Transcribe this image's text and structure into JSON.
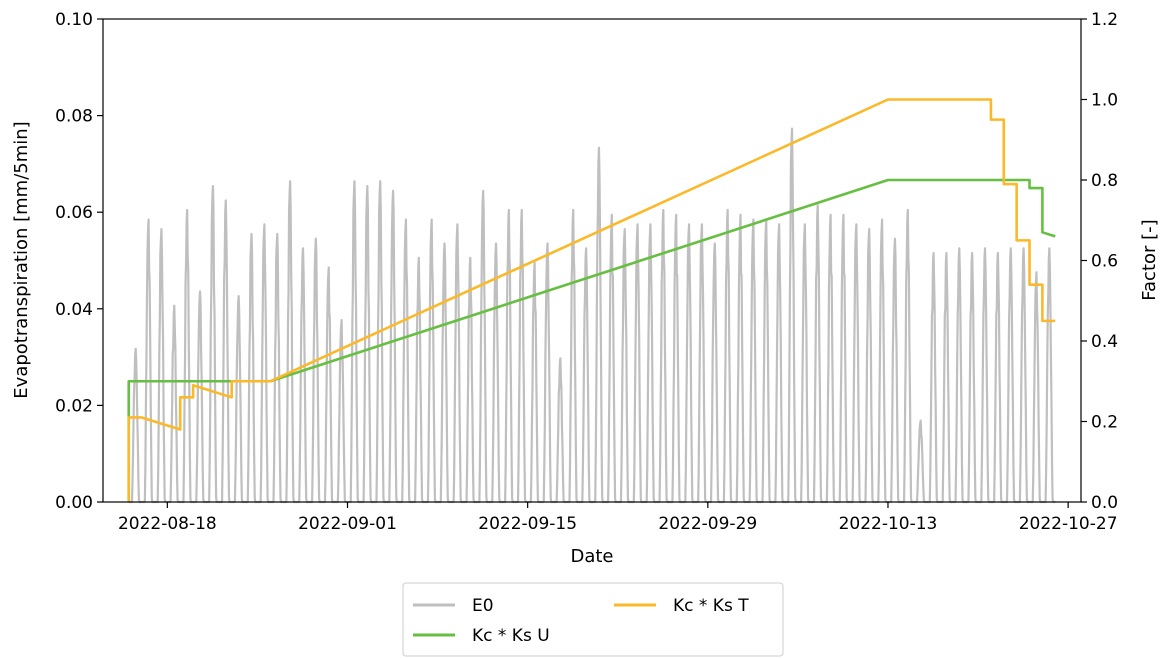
{
  "chart_data": {
    "type": "line",
    "title": "",
    "xlabel": "Date",
    "ylabel": "Evapotranspiration [mm/5min]",
    "y2label": "Factor [-]",
    "x_tick_labels": [
      "2022-08-18",
      "2022-09-01",
      "2022-09-15",
      "2022-09-29",
      "2022-10-13",
      "2022-10-27"
    ],
    "ylim": [
      0,
      0.1
    ],
    "y_tick_labels": [
      "0.00",
      "0.02",
      "0.04",
      "0.06",
      "0.08",
      "0.10"
    ],
    "y2lim": [
      0,
      1.2
    ],
    "y2_tick_labels": [
      "0.0",
      "0.2",
      "0.4",
      "0.6",
      "0.8",
      "1.0",
      "1.2"
    ],
    "xlim": [
      "2022-08-13",
      "2022-10-28"
    ],
    "grid": false,
    "legend_position": "below plot, centered",
    "series": [
      {
        "name": "E0",
        "axis": "left",
        "color": "#bfbfbf",
        "note_type": "daily-peaks",
        "daily_peaks": [
          [
            "2022-08-15",
            0.032
          ],
          [
            "2022-08-16",
            0.059
          ],
          [
            "2022-08-17",
            0.057
          ],
          [
            "2022-08-18",
            0.041
          ],
          [
            "2022-08-19",
            0.061
          ],
          [
            "2022-08-20",
            0.044
          ],
          [
            "2022-08-21",
            0.066
          ],
          [
            "2022-08-22",
            0.063
          ],
          [
            "2022-08-23",
            0.043
          ],
          [
            "2022-08-24",
            0.056
          ],
          [
            "2022-08-25",
            0.058
          ],
          [
            "2022-08-26",
            0.056
          ],
          [
            "2022-08-27",
            0.067
          ],
          [
            "2022-08-28",
            0.053
          ],
          [
            "2022-08-29",
            0.055
          ],
          [
            "2022-08-30",
            0.049
          ],
          [
            "2022-08-31",
            0.038
          ],
          [
            "2022-09-01",
            0.067
          ],
          [
            "2022-09-02",
            0.066
          ],
          [
            "2022-09-03",
            0.067
          ],
          [
            "2022-09-04",
            0.065
          ],
          [
            "2022-09-05",
            0.059
          ],
          [
            "2022-09-06",
            0.051
          ],
          [
            "2022-09-07",
            0.059
          ],
          [
            "2022-09-08",
            0.054
          ],
          [
            "2022-09-09",
            0.058
          ],
          [
            "2022-09-10",
            0.051
          ],
          [
            "2022-09-11",
            0.065
          ],
          [
            "2022-09-12",
            0.054
          ],
          [
            "2022-09-13",
            0.061
          ],
          [
            "2022-09-14",
            0.061
          ],
          [
            "2022-09-15",
            0.05
          ],
          [
            "2022-09-16",
            0.054
          ],
          [
            "2022-09-17",
            0.03
          ],
          [
            "2022-09-18",
            0.061
          ],
          [
            "2022-09-19",
            0.053
          ],
          [
            "2022-09-20",
            0.074
          ],
          [
            "2022-09-21",
            0.06
          ],
          [
            "2022-09-22",
            0.057
          ],
          [
            "2022-09-23",
            0.058
          ],
          [
            "2022-09-24",
            0.058
          ],
          [
            "2022-09-25",
            0.061
          ],
          [
            "2022-09-26",
            0.06
          ],
          [
            "2022-09-27",
            0.058
          ],
          [
            "2022-09-28",
            0.058
          ],
          [
            "2022-09-29",
            0.054
          ],
          [
            "2022-09-30",
            0.061
          ],
          [
            "2022-10-01",
            0.06
          ],
          [
            "2022-10-02",
            0.059
          ],
          [
            "2022-10-03",
            0.059
          ],
          [
            "2022-10-04",
            0.058
          ],
          [
            "2022-10-05",
            0.078
          ],
          [
            "2022-10-06",
            0.058
          ],
          [
            "2022-10-07",
            0.062
          ],
          [
            "2022-10-08",
            0.06
          ],
          [
            "2022-10-09",
            0.06
          ],
          [
            "2022-10-10",
            0.058
          ],
          [
            "2022-10-11",
            0.057
          ],
          [
            "2022-10-12",
            0.059
          ],
          [
            "2022-10-13",
            0.055
          ],
          [
            "2022-10-14",
            0.061
          ],
          [
            "2022-10-15",
            0.017
          ],
          [
            "2022-10-16",
            0.052
          ],
          [
            "2022-10-17",
            0.052
          ],
          [
            "2022-10-18",
            0.053
          ],
          [
            "2022-10-19",
            0.052
          ],
          [
            "2022-10-20",
            0.053
          ],
          [
            "2022-10-21",
            0.052
          ],
          [
            "2022-10-22",
            0.053
          ],
          [
            "2022-10-23",
            0.053
          ],
          [
            "2022-10-24",
            0.048
          ],
          [
            "2022-10-25",
            0.053
          ]
        ]
      },
      {
        "name": "Kc * Ks U",
        "axis": "right",
        "color": "#66bf40",
        "points": [
          [
            "2022-08-15",
            0.0
          ],
          [
            "2022-08-15",
            0.3
          ],
          [
            "2022-08-26",
            0.3
          ],
          [
            "2022-10-13",
            0.8
          ],
          [
            "2022-10-24",
            0.8
          ],
          [
            "2022-10-24",
            0.78
          ],
          [
            "2022-10-25",
            0.78
          ],
          [
            "2022-10-25",
            0.67
          ],
          [
            "2022-10-26",
            0.66
          ]
        ]
      },
      {
        "name": "Kc * Ks T",
        "axis": "right",
        "color": "#fbb829",
        "points": [
          [
            "2022-08-15",
            0.0
          ],
          [
            "2022-08-15",
            0.21
          ],
          [
            "2022-08-16",
            0.21
          ],
          [
            "2022-08-17",
            0.2
          ],
          [
            "2022-08-18",
            0.19
          ],
          [
            "2022-08-19",
            0.18
          ],
          [
            "2022-08-19",
            0.26
          ],
          [
            "2022-08-20",
            0.26
          ],
          [
            "2022-08-20",
            0.29
          ],
          [
            "2022-08-21",
            0.28
          ],
          [
            "2022-08-22",
            0.27
          ],
          [
            "2022-08-23",
            0.26
          ],
          [
            "2022-08-23",
            0.3
          ],
          [
            "2022-08-26",
            0.3
          ],
          [
            "2022-10-13",
            1.0
          ],
          [
            "2022-10-21",
            1.0
          ],
          [
            "2022-10-21",
            0.95
          ],
          [
            "2022-10-22",
            0.95
          ],
          [
            "2022-10-22",
            0.79
          ],
          [
            "2022-10-23",
            0.79
          ],
          [
            "2022-10-23",
            0.65
          ],
          [
            "2022-10-24",
            0.65
          ],
          [
            "2022-10-24",
            0.54
          ],
          [
            "2022-10-25",
            0.54
          ],
          [
            "2022-10-25",
            0.45
          ],
          [
            "2022-10-26",
            0.45
          ]
        ]
      }
    ]
  },
  "legend": {
    "entries": [
      {
        "label": "E0",
        "color": "#bfbfbf"
      },
      {
        "label": "Kc * Ks U",
        "color": "#66bf40"
      },
      {
        "label": "Kc * Ks T",
        "color": "#fbb829"
      }
    ]
  }
}
